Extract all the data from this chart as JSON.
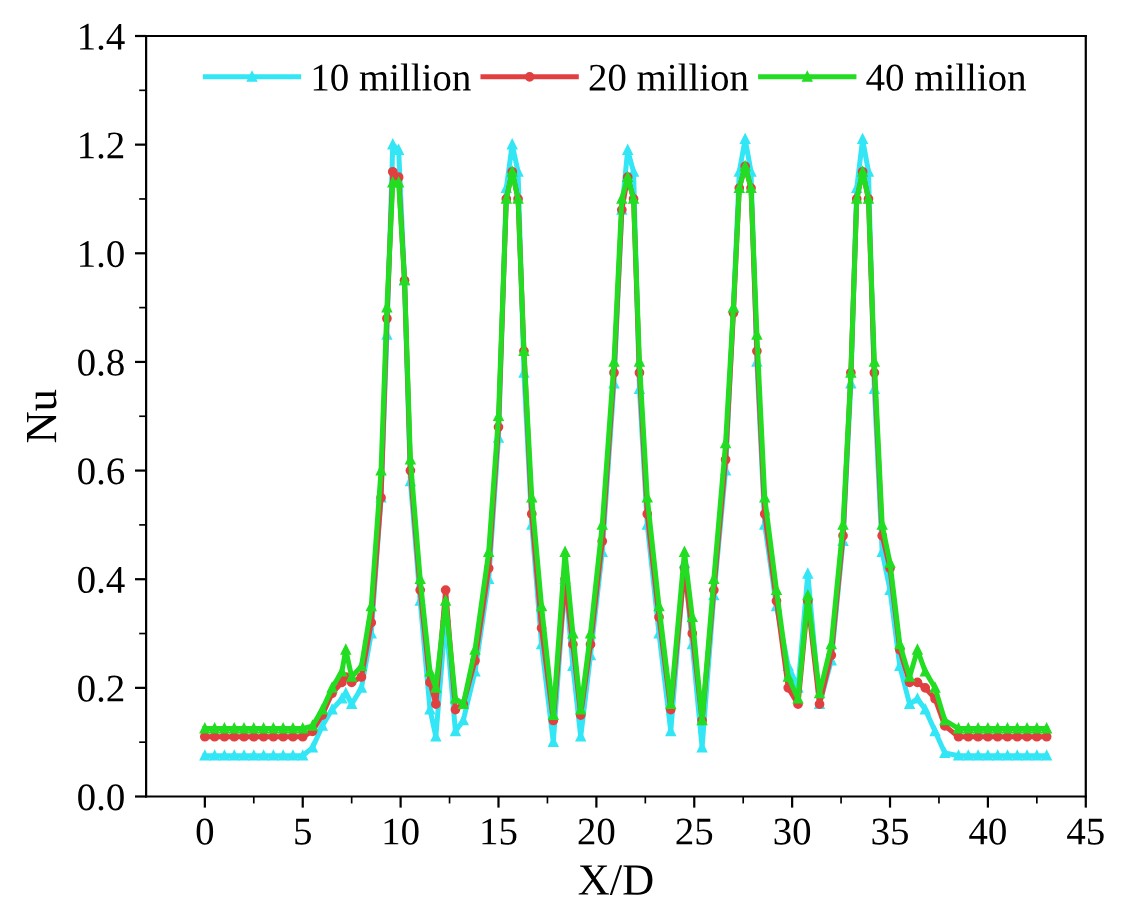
{
  "chart_data": {
    "type": "line",
    "xlabel": "X/D",
    "ylabel": "Nu",
    "x": [
      0,
      0.5,
      1,
      1.5,
      2,
      2.5,
      3,
      3.5,
      4,
      4.5,
      5,
      5.5,
      6,
      6.5,
      7,
      7.2,
      7.5,
      8,
      8.5,
      9,
      9.3,
      9.6,
      9.9,
      10.2,
      10.5,
      11,
      11.5,
      11.8,
      12.3,
      12.8,
      13.2,
      13.8,
      14.5,
      15,
      15.4,
      15.7,
      16,
      16.3,
      16.7,
      17.2,
      17.8,
      18.4,
      18.8,
      19.2,
      19.7,
      20.3,
      20.9,
      21.3,
      21.6,
      21.9,
      22.2,
      22.6,
      23.2,
      23.8,
      24.5,
      24.9,
      25.4,
      26,
      26.6,
      27,
      27.3,
      27.6,
      27.9,
      28.2,
      28.6,
      29.2,
      29.8,
      30.3,
      30.8,
      31.4,
      32,
      32.6,
      33,
      33.3,
      33.6,
      33.9,
      34.2,
      34.6,
      35,
      35.5,
      36,
      36.4,
      36.8,
      37.3,
      37.8,
      38.5,
      39,
      39.5,
      40,
      40.5,
      41,
      41.5,
      42,
      42.5,
      43
    ],
    "series": [
      {
        "name": "10 million",
        "color": "#33e6f5",
        "marker": "triangle",
        "values": [
          0.075,
          0.075,
          0.075,
          0.075,
          0.075,
          0.075,
          0.075,
          0.075,
          0.075,
          0.075,
          0.075,
          0.09,
          0.13,
          0.16,
          0.18,
          0.19,
          0.17,
          0.2,
          0.3,
          0.55,
          0.85,
          1.2,
          1.19,
          0.95,
          0.58,
          0.36,
          0.16,
          0.11,
          0.33,
          0.12,
          0.14,
          0.23,
          0.4,
          0.66,
          1.12,
          1.2,
          1.15,
          0.78,
          0.5,
          0.28,
          0.1,
          0.4,
          0.24,
          0.11,
          0.26,
          0.45,
          0.76,
          1.08,
          1.19,
          1.15,
          0.75,
          0.5,
          0.3,
          0.12,
          0.43,
          0.28,
          0.09,
          0.37,
          0.6,
          0.9,
          1.15,
          1.21,
          1.15,
          0.8,
          0.5,
          0.35,
          0.24,
          0.2,
          0.41,
          0.17,
          0.25,
          0.47,
          0.76,
          1.12,
          1.21,
          1.15,
          0.75,
          0.45,
          0.38,
          0.24,
          0.17,
          0.18,
          0.16,
          0.12,
          0.08,
          0.075,
          0.075,
          0.075,
          0.075,
          0.075,
          0.075,
          0.075,
          0.075,
          0.075,
          0.075
        ]
      },
      {
        "name": "20 million",
        "color": "#e04040",
        "marker": "circle",
        "values": [
          0.11,
          0.11,
          0.11,
          0.11,
          0.11,
          0.11,
          0.11,
          0.11,
          0.11,
          0.11,
          0.11,
          0.12,
          0.15,
          0.19,
          0.21,
          0.22,
          0.21,
          0.22,
          0.32,
          0.55,
          0.88,
          1.15,
          1.14,
          0.95,
          0.6,
          0.38,
          0.21,
          0.17,
          0.38,
          0.16,
          0.17,
          0.25,
          0.42,
          0.68,
          1.1,
          1.15,
          1.1,
          0.82,
          0.52,
          0.31,
          0.14,
          0.4,
          0.28,
          0.15,
          0.28,
          0.47,
          0.78,
          1.08,
          1.14,
          1.1,
          0.78,
          0.52,
          0.33,
          0.16,
          0.42,
          0.3,
          0.14,
          0.38,
          0.62,
          0.89,
          1.12,
          1.16,
          1.12,
          0.82,
          0.52,
          0.36,
          0.2,
          0.17,
          0.36,
          0.17,
          0.26,
          0.48,
          0.78,
          1.1,
          1.15,
          1.1,
          0.78,
          0.48,
          0.42,
          0.27,
          0.21,
          0.21,
          0.2,
          0.18,
          0.13,
          0.11,
          0.11,
          0.11,
          0.11,
          0.11,
          0.11,
          0.11,
          0.11,
          0.11,
          0.11
        ]
      },
      {
        "name": "40 million",
        "color": "#22dd22",
        "marker": "triangle",
        "values": [
          0.125,
          0.125,
          0.125,
          0.125,
          0.125,
          0.125,
          0.125,
          0.125,
          0.125,
          0.125,
          0.125,
          0.13,
          0.16,
          0.2,
          0.23,
          0.27,
          0.22,
          0.24,
          0.35,
          0.6,
          0.9,
          1.13,
          1.13,
          0.95,
          0.62,
          0.4,
          0.23,
          0.2,
          0.36,
          0.18,
          0.17,
          0.27,
          0.45,
          0.7,
          1.1,
          1.15,
          1.1,
          0.82,
          0.55,
          0.35,
          0.15,
          0.45,
          0.3,
          0.16,
          0.3,
          0.5,
          0.8,
          1.1,
          1.14,
          1.1,
          0.8,
          0.55,
          0.35,
          0.17,
          0.45,
          0.33,
          0.14,
          0.4,
          0.65,
          0.9,
          1.12,
          1.16,
          1.12,
          0.85,
          0.55,
          0.38,
          0.22,
          0.18,
          0.37,
          0.19,
          0.28,
          0.5,
          0.78,
          1.1,
          1.15,
          1.1,
          0.8,
          0.5,
          0.43,
          0.28,
          0.22,
          0.27,
          0.23,
          0.2,
          0.14,
          0.125,
          0.125,
          0.125,
          0.125,
          0.125,
          0.125,
          0.125,
          0.125,
          0.125,
          0.125
        ]
      }
    ],
    "xlim": [
      -3,
      45
    ],
    "xticks": [
      0,
      5,
      10,
      15,
      20,
      25,
      30,
      35,
      40,
      45
    ],
    "ylim": [
      0,
      1.4
    ],
    "yticks": [
      {
        "value": 0,
        "label": "0.0"
      },
      {
        "value": 0.2,
        "label": "0.2"
      },
      {
        "value": 0.4,
        "label": "0.4"
      },
      {
        "value": 0.6,
        "label": "0.6"
      },
      {
        "value": 0.8,
        "label": "0.8"
      },
      {
        "value": 1.0,
        "label": "1.0"
      },
      {
        "value": 1.2,
        "label": "1.2"
      },
      {
        "value": 1.4,
        "label": "1.4"
      }
    ],
    "legend": "top",
    "grid": false,
    "line_style": "solid"
  }
}
